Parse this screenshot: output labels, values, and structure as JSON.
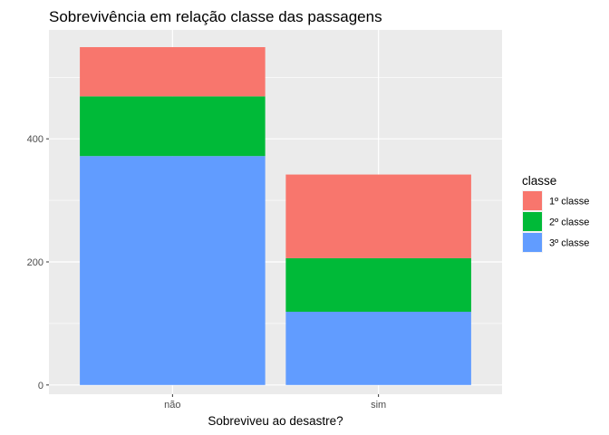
{
  "chart_data": {
    "type": "bar",
    "stacked": true,
    "title": "Sobrevivência em relação classe das passagens",
    "xlabel": "Sobreviveu ao desastre?",
    "ylabel": "",
    "categories": [
      "não",
      "sim"
    ],
    "yticks": [
      0,
      200,
      400
    ],
    "ylim": [
      -15,
      577
    ],
    "grid": true,
    "legend": {
      "title": "classe",
      "position": "right"
    },
    "series": [
      {
        "name": "3º classe",
        "color": "#619CFF",
        "values": [
          372,
          119
        ]
      },
      {
        "name": "2º classe",
        "color": "#00BA38",
        "values": [
          97,
          87
        ]
      },
      {
        "name": "1º classe",
        "color": "#F8766D",
        "values": [
          80,
          136
        ]
      }
    ],
    "colors": {
      "panel": "#EBEBEB",
      "grid": "#FFFFFF",
      "tick": "#333333"
    }
  }
}
